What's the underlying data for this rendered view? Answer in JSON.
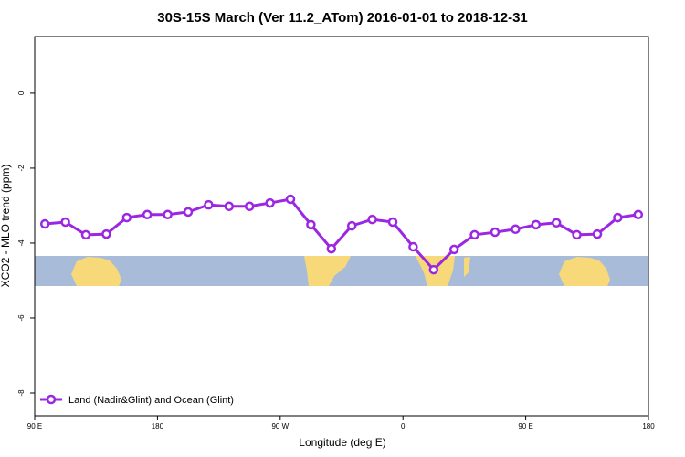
{
  "chart_data": {
    "type": "line",
    "title": "30S-15S March (Ver 11.2_ATom)   2016-01-01 to 2018-12-31",
    "x_label": "Longitude (deg E)",
    "y_label": "XCO2 - MLO trend (ppm)",
    "x": [
      97.5,
      112.5,
      127.5,
      142.5,
      157.5,
      172.5,
      187.5,
      202.5,
      217.5,
      232.5,
      247.5,
      262.5,
      277.5,
      292.5,
      307.5,
      322.5,
      337.5,
      352.5,
      367.5,
      382.5,
      397.5,
      412.5,
      427.5,
      442.5,
      457.5,
      472.5,
      487.5,
      502.5,
      517.5,
      532.5
    ],
    "series": [
      {
        "name": "Land (Nadir&Glint) and Ocean (Glint)",
        "color": "#9b27e3",
        "values": [
          -3.49,
          -3.44,
          -3.78,
          -3.76,
          -3.32,
          -3.24,
          -3.24,
          -3.17,
          -2.98,
          -3.02,
          -3.02,
          -2.93,
          -2.83,
          -3.51,
          -4.15,
          -3.54,
          -3.37,
          -3.44,
          -4.1,
          -4.71,
          -4.17,
          -3.78,
          -3.71,
          -3.63,
          -3.51,
          -3.46,
          -3.78,
          -3.76,
          -3.32,
          -3.24
        ]
      }
    ],
    "xlim": [
      90,
      540
    ],
    "xticks": [
      {
        "value": 90,
        "label": "90 E"
      },
      180,
      {
        "value": 270,
        "label": "90 W"
      },
      {
        "value": 360,
        "label": "0"
      },
      {
        "value": 450,
        "label": "90 E"
      },
      {
        "value": 540,
        "label": "180"
      }
    ],
    "ylim": [
      -8.61,
      1.51
    ],
    "yticks": [
      0,
      -2,
      -4,
      -6,
      -8
    ],
    "legend": "bottom-left"
  }
}
